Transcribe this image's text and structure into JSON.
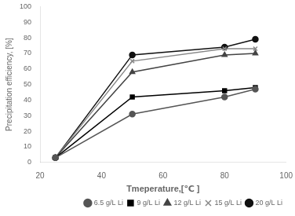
{
  "chart_data": {
    "type": "line",
    "xlabel": "Tmeperature,[℃ ]",
    "ylabel": "Precipitation efficiency, [%]",
    "xlim": [
      20,
      100
    ],
    "ylim": [
      0,
      100
    ],
    "xticks": [
      20,
      40,
      60,
      80,
      100
    ],
    "yticks": [
      0,
      10,
      20,
      30,
      40,
      50,
      60,
      70,
      80,
      90,
      100
    ],
    "grid": false,
    "legend": "lower right",
    "x": [
      25,
      50,
      80,
      90
    ],
    "series": [
      {
        "name": "6.5 g/L Li",
        "color": "#555555",
        "marker": "circle",
        "values": [
          3,
          31,
          42,
          47
        ]
      },
      {
        "name": "9 g/L Li",
        "color": "#000000",
        "marker": "square",
        "values": [
          3,
          42,
          46,
          48
        ]
      },
      {
        "name": "12 g/L Li",
        "color": "#444444",
        "marker": "triangle",
        "values": [
          3,
          58,
          69,
          70
        ]
      },
      {
        "name": "15 g/L Li",
        "color": "#888888",
        "marker": "cross",
        "values": [
          3,
          65,
          73,
          73
        ]
      },
      {
        "name": "20 g/L Li",
        "color": "#111111",
        "marker": "circle",
        "values": [
          3,
          69,
          74,
          79
        ]
      }
    ]
  }
}
